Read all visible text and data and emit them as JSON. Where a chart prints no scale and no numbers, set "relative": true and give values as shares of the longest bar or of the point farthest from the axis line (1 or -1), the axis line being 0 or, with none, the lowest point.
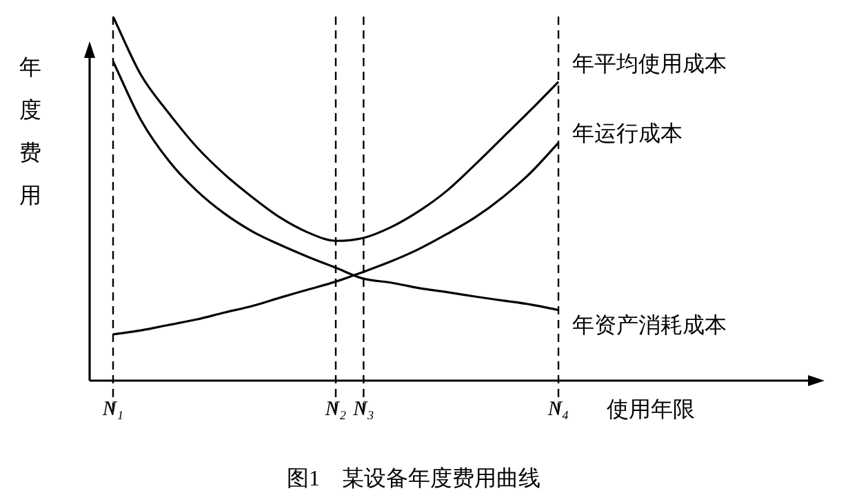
{
  "chart_data": {
    "type": "line",
    "relative": true,
    "title": "图1　某设备年度费用曲线",
    "xlabel": "使用年限",
    "ylabel": "年度费用",
    "categories": [
      "N₁",
      null,
      null,
      null,
      null,
      null,
      null,
      null,
      "N₂",
      "N₃",
      null,
      null,
      null,
      null,
      null,
      null,
      "N₄"
    ],
    "series": [
      {
        "name": "年平均使用成本",
        "color": "#000000",
        "values": [
          1,
          0.84,
          0.735,
          0.642,
          0.567,
          0.504,
          0.448,
          0.407,
          0.384,
          0.392,
          0.422,
          0.466,
          0.522,
          0.593,
          0.668,
          0.743,
          0.821
        ]
      },
      {
        "name": "年运行成本",
        "color": "#000000",
        "values": [
          0.127,
          0.138,
          0.153,
          0.168,
          0.187,
          0.205,
          0.228,
          0.25,
          0.272,
          0.299,
          0.328,
          0.362,
          0.403,
          0.448,
          0.504,
          0.571,
          0.653
        ]
      },
      {
        "name": "年资产消耗成本",
        "color": "#000000",
        "values": [
          0.877,
          0.716,
          0.604,
          0.522,
          0.459,
          0.41,
          0.373,
          0.34,
          0.31,
          0.28,
          0.269,
          0.254,
          0.243,
          0.231,
          0.22,
          0.209,
          0.194
        ]
      }
    ],
    "ref_lines": [
      {
        "axis": "x",
        "value": "N₁",
        "color": "#000000",
        "line_style": "dashed"
      },
      {
        "axis": "x",
        "value": "N₂",
        "color": "#000000",
        "line_style": "dashed"
      },
      {
        "axis": "x",
        "value": "N₃",
        "color": "#000000",
        "line_style": "dashed"
      },
      {
        "axis": "x",
        "value": "N₄",
        "color": "#000000",
        "line_style": "dashed"
      }
    ],
    "grid": false,
    "legend": false,
    "marker": "none",
    "line_style": "solid"
  }
}
